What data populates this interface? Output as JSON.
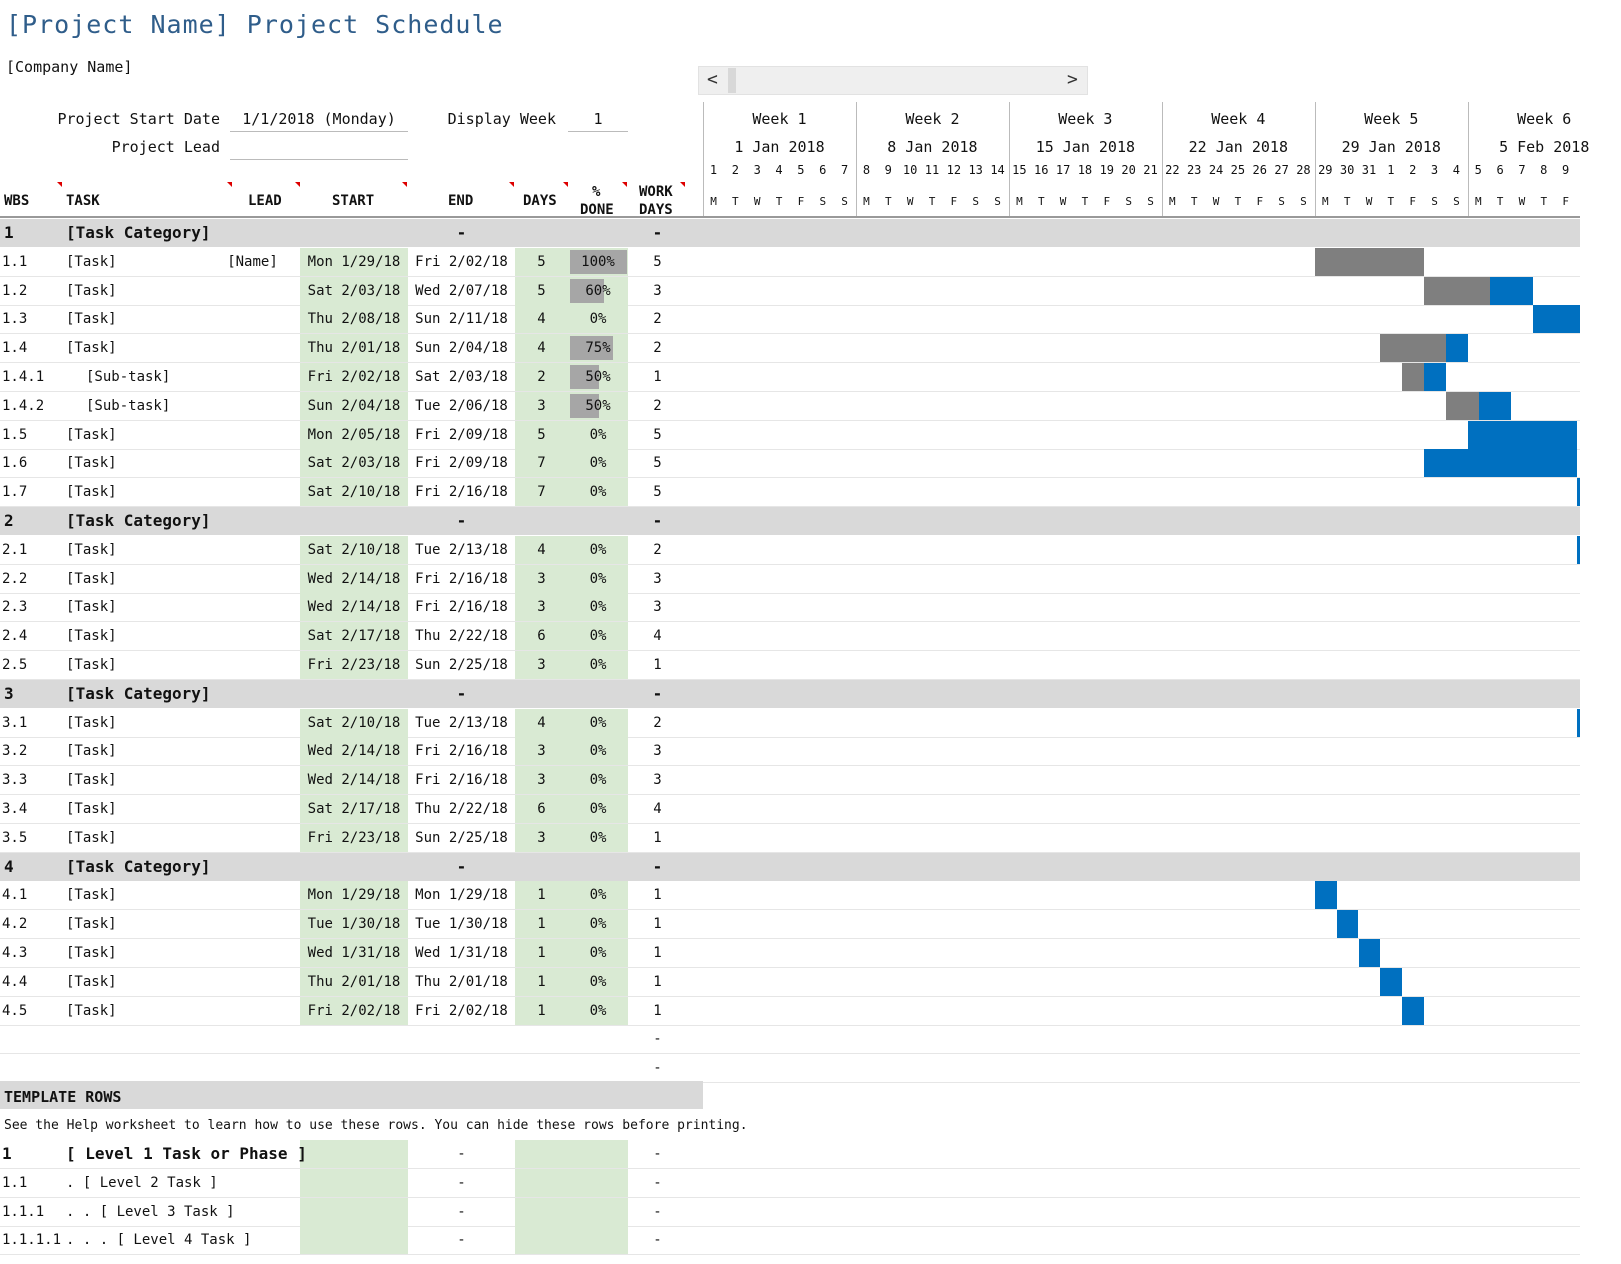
{
  "title": "[Project Name] Project Schedule",
  "company": "[Company Name]",
  "meta": {
    "start_label": "Project Start Date",
    "start_value": "1/1/2018 (Monday)",
    "lead_label": "Project Lead",
    "lead_value": "",
    "display_week_label": "Display Week",
    "display_week_value": "1"
  },
  "scrollbar": {
    "left_arrow": "<",
    "right_arrow": ">"
  },
  "timeline": {
    "weeks": [
      {
        "label": "Week 1",
        "date": "1 Jan 2018"
      },
      {
        "label": "Week 2",
        "date": "8 Jan 2018"
      },
      {
        "label": "Week 3",
        "date": "15 Jan 2018"
      },
      {
        "label": "Week 4",
        "date": "22 Jan 2018"
      },
      {
        "label": "Week 5",
        "date": "29 Jan 2018"
      },
      {
        "label": "Week 6",
        "date": "5 Feb 2018"
      }
    ],
    "days": [
      "1",
      "2",
      "3",
      "4",
      "5",
      "6",
      "7",
      "8",
      "9",
      "10",
      "11",
      "12",
      "13",
      "14",
      "15",
      "16",
      "17",
      "18",
      "19",
      "20",
      "21",
      "22",
      "23",
      "24",
      "25",
      "26",
      "27",
      "28",
      "29",
      "30",
      "31",
      "1",
      "2",
      "3",
      "4",
      "5",
      "6",
      "7",
      "8",
      "9"
    ],
    "day_letters": [
      "M",
      "T",
      "W",
      "T",
      "F",
      "S",
      "S",
      "M",
      "T",
      "W",
      "T",
      "F",
      "S",
      "S",
      "M",
      "T",
      "W",
      "T",
      "F",
      "S",
      "S",
      "M",
      "T",
      "W",
      "T",
      "F",
      "S",
      "S",
      "M",
      "T",
      "W",
      "T",
      "F",
      "S",
      "S",
      "M",
      "T",
      "W",
      "T",
      "F"
    ]
  },
  "columns": {
    "wbs": "WBS",
    "task": "TASK",
    "lead": "LEAD",
    "start": "START",
    "end": "END",
    "days": "DAYS",
    "done_1": "%",
    "done_2": "DONE",
    "work_1": "WORK",
    "work_2": "DAYS"
  },
  "colors": {
    "done_bar": "#7f7f7f",
    "todo_bar": "#0070c0",
    "category_bg": "#d9d9d9",
    "input_bg": "#d9ead3"
  },
  "rows": [
    {
      "type": "cat",
      "wbs": "1",
      "task": "[Task Category]",
      "end": "-",
      "work": "-"
    },
    {
      "type": "task",
      "wbs": "1.1",
      "task": "[Task]",
      "lead": "[Name]",
      "start": "Mon 1/29/18",
      "end": "Fri 2/02/18",
      "days": "5",
      "pct": "100%",
      "progress": 1.0,
      "work": "5",
      "gantt_start": 28,
      "gantt_len": 5
    },
    {
      "type": "task",
      "wbs": "1.2",
      "task": "[Task]",
      "lead": "",
      "start": "Sat 2/03/18",
      "end": "Wed 2/07/18",
      "days": "5",
      "pct": "60%",
      "progress": 0.6,
      "work": "3",
      "gantt_start": 33,
      "gantt_len": 5
    },
    {
      "type": "task",
      "wbs": "1.3",
      "task": "[Task]",
      "lead": "",
      "start": "Thu 2/08/18",
      "end": "Sun 2/11/18",
      "days": "4",
      "pct": "0%",
      "progress": 0.0,
      "work": "2",
      "gantt_start": 38,
      "gantt_len": 4
    },
    {
      "type": "task",
      "wbs": "1.4",
      "task": "[Task]",
      "lead": "",
      "start": "Thu 2/01/18",
      "end": "Sun 2/04/18",
      "days": "4",
      "pct": "75%",
      "progress": 0.75,
      "work": "2",
      "gantt_start": 31,
      "gantt_len": 4
    },
    {
      "type": "sub",
      "wbs": "1.4.1",
      "task": "[Sub-task]",
      "lead": "",
      "start": "Fri 2/02/18",
      "end": "Sat 2/03/18",
      "days": "2",
      "pct": "50%",
      "progress": 0.5,
      "work": "1",
      "gantt_start": 32,
      "gantt_len": 2
    },
    {
      "type": "sub",
      "wbs": "1.4.2",
      "task": "[Sub-task]",
      "lead": "",
      "start": "Sun 2/04/18",
      "end": "Tue 2/06/18",
      "days": "3",
      "pct": "50%",
      "progress": 0.5,
      "work": "2",
      "gantt_start": 34,
      "gantt_len": 3
    },
    {
      "type": "task",
      "wbs": "1.5",
      "task": "[Task]",
      "lead": "",
      "start": "Mon 2/05/18",
      "end": "Fri 2/09/18",
      "days": "5",
      "pct": "0%",
      "progress": 0.0,
      "work": "5",
      "gantt_start": 35,
      "gantt_len": 5
    },
    {
      "type": "task",
      "wbs": "1.6",
      "task": "[Task]",
      "lead": "",
      "start": "Sat 2/03/18",
      "end": "Fri 2/09/18",
      "days": "7",
      "pct": "0%",
      "progress": 0.0,
      "work": "5",
      "gantt_start": 33,
      "gantt_len": 7
    },
    {
      "type": "task",
      "wbs": "1.7",
      "task": "[Task]",
      "lead": "",
      "start": "Sat 2/10/18",
      "end": "Fri 2/16/18",
      "days": "7",
      "pct": "0%",
      "progress": 0.0,
      "work": "5",
      "gantt_start": 40,
      "gantt_len": 7
    },
    {
      "type": "cat",
      "wbs": "2",
      "task": "[Task Category]",
      "end": "-",
      "work": "-"
    },
    {
      "type": "task",
      "wbs": "2.1",
      "task": "[Task]",
      "lead": "",
      "start": "Sat 2/10/18",
      "end": "Tue 2/13/18",
      "days": "4",
      "pct": "0%",
      "progress": 0.0,
      "work": "2",
      "gantt_start": 40,
      "gantt_len": 4
    },
    {
      "type": "task",
      "wbs": "2.2",
      "task": "[Task]",
      "lead": "",
      "start": "Wed 2/14/18",
      "end": "Fri 2/16/18",
      "days": "3",
      "pct": "0%",
      "progress": 0.0,
      "work": "3",
      "gantt_start": 44,
      "gantt_len": 3
    },
    {
      "type": "task",
      "wbs": "2.3",
      "task": "[Task]",
      "lead": "",
      "start": "Wed 2/14/18",
      "end": "Fri 2/16/18",
      "days": "3",
      "pct": "0%",
      "progress": 0.0,
      "work": "3",
      "gantt_start": 44,
      "gantt_len": 3
    },
    {
      "type": "task",
      "wbs": "2.4",
      "task": "[Task]",
      "lead": "",
      "start": "Sat 2/17/18",
      "end": "Thu 2/22/18",
      "days": "6",
      "pct": "0%",
      "progress": 0.0,
      "work": "4",
      "gantt_start": 47,
      "gantt_len": 6
    },
    {
      "type": "task",
      "wbs": "2.5",
      "task": "[Task]",
      "lead": "",
      "start": "Fri 2/23/18",
      "end": "Sun 2/25/18",
      "days": "3",
      "pct": "0%",
      "progress": 0.0,
      "work": "1",
      "gantt_start": 53,
      "gantt_len": 3
    },
    {
      "type": "cat",
      "wbs": "3",
      "task": "[Task Category]",
      "end": "-",
      "work": "-"
    },
    {
      "type": "task",
      "wbs": "3.1",
      "task": "[Task]",
      "lead": "",
      "start": "Sat 2/10/18",
      "end": "Tue 2/13/18",
      "days": "4",
      "pct": "0%",
      "progress": 0.0,
      "work": "2",
      "gantt_start": 40,
      "gantt_len": 4
    },
    {
      "type": "task",
      "wbs": "3.2",
      "task": "[Task]",
      "lead": "",
      "start": "Wed 2/14/18",
      "end": "Fri 2/16/18",
      "days": "3",
      "pct": "0%",
      "progress": 0.0,
      "work": "3",
      "gantt_start": 44,
      "gantt_len": 3
    },
    {
      "type": "task",
      "wbs": "3.3",
      "task": "[Task]",
      "lead": "",
      "start": "Wed 2/14/18",
      "end": "Fri 2/16/18",
      "days": "3",
      "pct": "0%",
      "progress": 0.0,
      "work": "3",
      "gantt_start": 44,
      "gantt_len": 3
    },
    {
      "type": "task",
      "wbs": "3.4",
      "task": "[Task]",
      "lead": "",
      "start": "Sat 2/17/18",
      "end": "Thu 2/22/18",
      "days": "6",
      "pct": "0%",
      "progress": 0.0,
      "work": "4",
      "gantt_start": 47,
      "gantt_len": 6
    },
    {
      "type": "task",
      "wbs": "3.5",
      "task": "[Task]",
      "lead": "",
      "start": "Fri 2/23/18",
      "end": "Sun 2/25/18",
      "days": "3",
      "pct": "0%",
      "progress": 0.0,
      "work": "1",
      "gantt_start": 53,
      "gantt_len": 3
    },
    {
      "type": "cat",
      "wbs": "4",
      "task": "[Task Category]",
      "end": "-",
      "work": "-"
    },
    {
      "type": "task",
      "wbs": "4.1",
      "task": "[Task]",
      "lead": "",
      "start": "Mon 1/29/18",
      "end": "Mon 1/29/18",
      "days": "1",
      "pct": "0%",
      "progress": 0.0,
      "work": "1",
      "gantt_start": 28,
      "gantt_len": 1
    },
    {
      "type": "task",
      "wbs": "4.2",
      "task": "[Task]",
      "lead": "",
      "start": "Tue 1/30/18",
      "end": "Tue 1/30/18",
      "days": "1",
      "pct": "0%",
      "progress": 0.0,
      "work": "1",
      "gantt_start": 29,
      "gantt_len": 1
    },
    {
      "type": "task",
      "wbs": "4.3",
      "task": "[Task]",
      "lead": "",
      "start": "Wed 1/31/18",
      "end": "Wed 1/31/18",
      "days": "1",
      "pct": "0%",
      "progress": 0.0,
      "work": "1",
      "gantt_start": 30,
      "gantt_len": 1
    },
    {
      "type": "task",
      "wbs": "4.4",
      "task": "[Task]",
      "lead": "",
      "start": "Thu 2/01/18",
      "end": "Thu 2/01/18",
      "days": "1",
      "pct": "0%",
      "progress": 0.0,
      "work": "1",
      "gantt_start": 31,
      "gantt_len": 1
    },
    {
      "type": "task",
      "wbs": "4.5",
      "task": "[Task]",
      "lead": "",
      "start": "Fri 2/02/18",
      "end": "Fri 2/02/18",
      "days": "1",
      "pct": "0%",
      "progress": 0.0,
      "work": "1",
      "gantt_start": 32,
      "gantt_len": 1
    },
    {
      "type": "blank",
      "work": "-"
    },
    {
      "type": "blank",
      "work": "-"
    }
  ],
  "template": {
    "title": "TEMPLATE ROWS",
    "note": "See the Help worksheet to learn how to use these rows. You can hide these rows before printing.",
    "rows": [
      {
        "wbs": "1",
        "task": "[ Level 1 Task or Phase ]",
        "end": "-",
        "work": "-",
        "bold": true
      },
      {
        "wbs": "1.1",
        "task": ". [ Level 2 Task ]",
        "end": "-",
        "work": "-",
        "bold": false
      },
      {
        "wbs": "1.1.1",
        "task": ". . [ Level 3 Task ]",
        "end": "-",
        "work": "-",
        "bold": false
      },
      {
        "wbs": "1.1.1.1",
        "task": ". . . [ Level 4 Task ]",
        "end": "-",
        "work": "-",
        "bold": false
      }
    ]
  }
}
